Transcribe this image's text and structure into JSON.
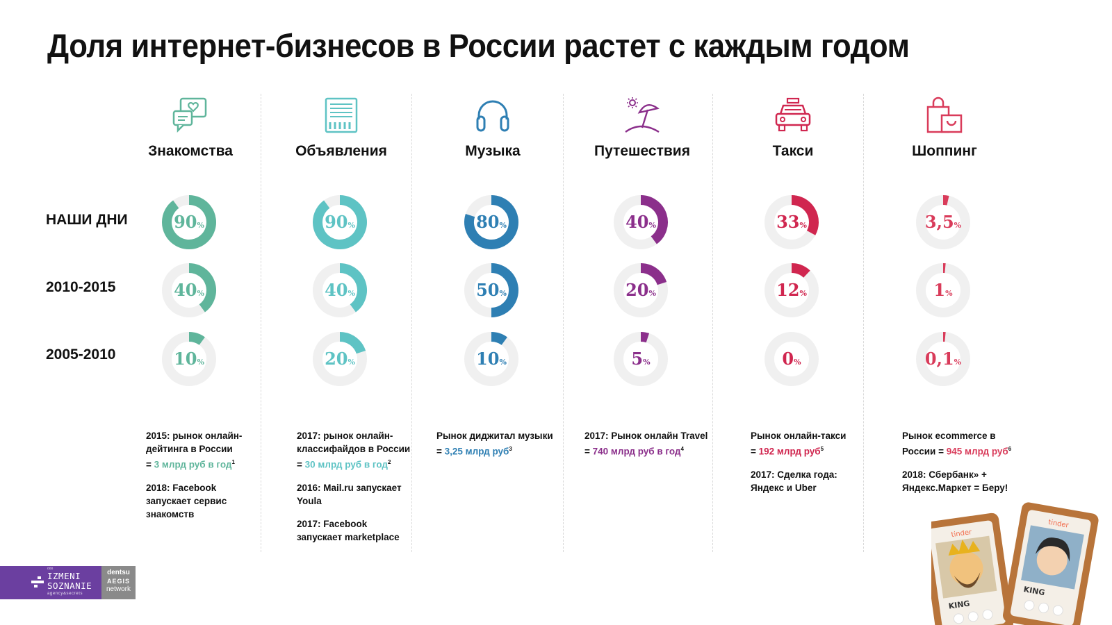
{
  "title": "Доля интернет-бизнесов в России растет с каждым годом",
  "row_labels": [
    "НАШИ ДНИ",
    "2010-2015",
    "2005-2010"
  ],
  "chart_data": {
    "type": "donut",
    "value_unit": "%",
    "rows": [
      "НАШИ ДНИ",
      "2010-2015",
      "2005-2010"
    ],
    "categories": [
      {
        "name": "Знакомства",
        "icon": "chat-heart-icon",
        "color": "#5fb59b",
        "values": [
          90,
          40,
          10
        ],
        "labels": [
          "90",
          "40",
          "10"
        ]
      },
      {
        "name": "Объявления",
        "icon": "classifieds-icon",
        "color": "#5ec3c4",
        "values": [
          90,
          40,
          20
        ],
        "labels": [
          "90",
          "40",
          "20"
        ]
      },
      {
        "name": "Музыка",
        "icon": "headphones-icon",
        "color": "#2e7fb3",
        "values": [
          80,
          50,
          10
        ],
        "labels": [
          "80",
          "50",
          "10"
        ]
      },
      {
        "name": "Путешествия",
        "icon": "beach-umbrella-icon",
        "color": "#8b2f8b",
        "values": [
          40,
          20,
          5
        ],
        "labels": [
          "40",
          "20",
          "5"
        ]
      },
      {
        "name": "Такси",
        "icon": "taxi-icon",
        "color": "#d0264f",
        "values": [
          33,
          12,
          0
        ],
        "labels": [
          "33",
          "12",
          "0"
        ]
      },
      {
        "name": "Шоппинг",
        "icon": "shopping-bag-icon",
        "color": "#d93b5a",
        "values": [
          3.5,
          1,
          0.1
        ],
        "labels": [
          "3,5",
          "1",
          "0,1"
        ]
      }
    ],
    "track_color": "#f0f0f0"
  },
  "notes": [
    [
      {
        "pre": "2015: рынок онлайн-",
        "line2": "дейтинга в России",
        "pre3": "= ",
        "hl": "3 млрд руб в год",
        "sup": "1"
      },
      {
        "text": [
          "2018: Facebook",
          "запускает сервис",
          "знакомств"
        ]
      }
    ],
    [
      {
        "pre": "2017: рынок онлайн-",
        "line2": "классифайдов в России",
        "pre3": "= ",
        "hl": "30 млрд руб в год",
        "sup": "2"
      },
      {
        "text": [
          "2016: Mail.ru запускает",
          "Youla"
        ]
      },
      {
        "text": [
          "2017: Facebook",
          "запускает marketplace"
        ]
      }
    ],
    [
      {
        "pre": "Рынок диджитал музыки",
        "line2": "",
        "pre3": "= ",
        "hl": "3,25 млрд руб",
        "sup": "3"
      }
    ],
    [
      {
        "pre": "2017: Рынок онлайн Travel",
        "line2": "",
        "pre3": "= ",
        "hl": "740 млрд руб в год",
        "sup": "4"
      }
    ],
    [
      {
        "pre": "Рынок онлайн-такси",
        "line2": "",
        "pre3": "= ",
        "hl": "192 млрд руб",
        "sup": "5"
      },
      {
        "text": [
          "2017: Сделка года:",
          "Яндекс и Uber"
        ]
      }
    ],
    [
      {
        "pre": "Рынок ecommerce в",
        "line2": "",
        "pre3": "России = ",
        "hl": "945 млрд руб",
        "sup": "6"
      },
      {
        "text": [
          "2018: Сбербанк» +",
          "Яндекс.Маркет = Беру!"
        ]
      }
    ]
  ],
  "logo": {
    "small": "ооо",
    "line1": "IZMENI",
    "line2": "SOZNANIE",
    "tagline": "agency&secrets",
    "partner": [
      "dentsu",
      "AEGIS",
      "network"
    ]
  },
  "cards": {
    "app": "tinder",
    "card1": "KING",
    "card2": "KING"
  }
}
